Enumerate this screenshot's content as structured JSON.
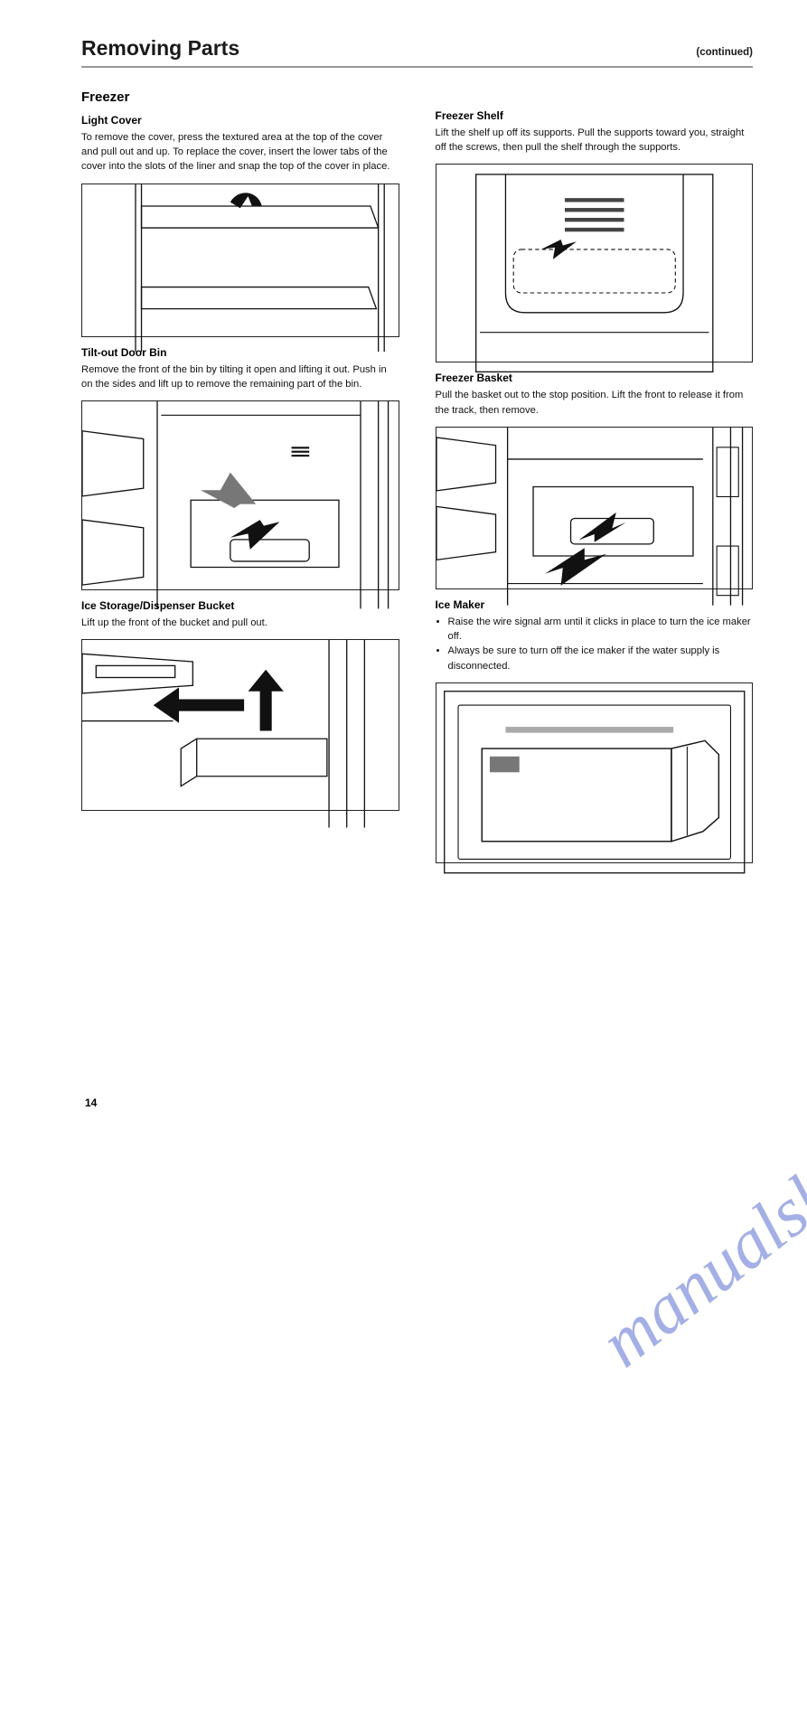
{
  "watermark": {
    "text": "manualshive.com",
    "color": "#5a6fd0",
    "opacity": 0.55,
    "fontsize": 78,
    "rotation_deg": -38
  },
  "header": {
    "title": "Removing Parts",
    "continued": "(continued)"
  },
  "left": {
    "section_title": "Freezer",
    "light_cover": {
      "h": "Light Cover",
      "p": "To remove the cover, press the textured area at the top of the cover and pull out and up. To replace the cover, insert the lower tabs of the cover into the slots of the liner and snap the top of the cover in place."
    },
    "tilt_out": {
      "h": "Tilt-out Door Bin",
      "p": "Remove the front of the bin by tilting it open and lifting it out. Push in on the sides and lift up to remove the remaining part of the bin."
    },
    "bucket": {
      "h": "Ice Storage/Dispenser Bucket",
      "p": "Lift up the front of the bucket and pull out."
    }
  },
  "right": {
    "shelf": {
      "h": "Freezer Shelf",
      "p": "Lift the shelf up off its supports. Pull the supports toward you, straight off the screws, then pull the shelf through the supports."
    },
    "basket": {
      "h": "Freezer Basket",
      "p": "Pull the basket out to the stop position. Lift the front to release it from the track, then remove."
    },
    "icemaker": {
      "h": "Ice Maker",
      "bullets": [
        "Raise the wire signal arm until it clicks in place to turn the ice maker off.",
        "Always be sure to turn off the ice maker if the water supply is disconnected."
      ]
    }
  },
  "pageno": "14",
  "figures": {
    "border_color": "#222",
    "line_color": "#111",
    "bg": "#fff"
  }
}
